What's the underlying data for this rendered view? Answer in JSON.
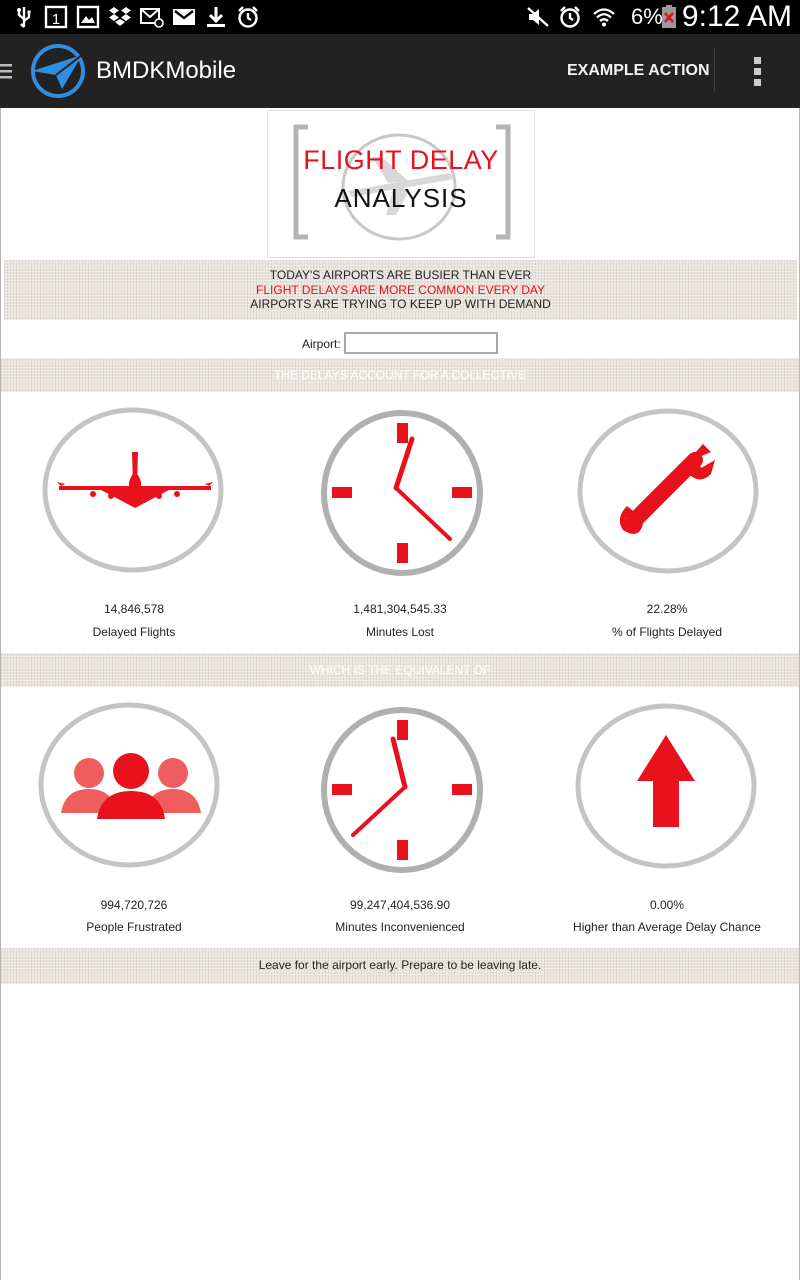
{
  "status_bar": {
    "battery_percent": "6%",
    "time": "9:12 AM",
    "left_icons": [
      "usb-icon",
      "calendar-icon",
      "gallery-icon",
      "dropbox-icon",
      "email-icon",
      "gmail-icon",
      "download-icon",
      "alarm-icon"
    ],
    "right_icons": [
      "mute-icon",
      "alarm-icon",
      "wifi-icon",
      "battery-low-icon"
    ]
  },
  "action_bar": {
    "title": "BMDKMobile",
    "action_label": "EXAMPLE ACTION"
  },
  "logo": {
    "line1": "FLIGHT DELAY",
    "line2": "ANALYSIS"
  },
  "intro": {
    "line1": "TODAY'S AIRPORTS ARE BUSIER THAN EVER",
    "line2": "FLIGHT DELAYS ARE MORE COMMON EVERY DAY",
    "line3": "AIRPORTS ARE TRYING TO KEEP UP WITH DEMAND"
  },
  "airport": {
    "label": "Airport:",
    "value": ""
  },
  "section1": {
    "heading": "THE DELAYS ACCOUNT FOR A COLLECTIVE",
    "stats": [
      {
        "value": "14,846,578",
        "label": "Delayed Flights",
        "icon": "airplane-icon"
      },
      {
        "value": "1,481,304,545.33",
        "label": "Minutes Lost",
        "icon": "clock-icon"
      },
      {
        "value": "22.28%",
        "label": "% of Flights Delayed",
        "icon": "wrench-icon"
      }
    ]
  },
  "section2": {
    "heading": "WHICH IS THE EQUIVALENT OF",
    "stats": [
      {
        "value": "994,720,726",
        "label": "People Frustrated",
        "icon": "people-icon"
      },
      {
        "value": "99,247,404,536.90",
        "label": "Minutes Inconvenienced",
        "icon": "clock-icon"
      },
      {
        "value": "0.00%",
        "label": "Higher than Average Delay Chance",
        "icon": "arrow-up-icon"
      }
    ]
  },
  "footer": {
    "text": "Leave for the airport early. Prepare to be leaving late."
  },
  "colors": {
    "accent_red": "#e8111c",
    "action_bar": "#222222",
    "status_bar": "#000000",
    "logo_blue": "#2f8ee0"
  }
}
